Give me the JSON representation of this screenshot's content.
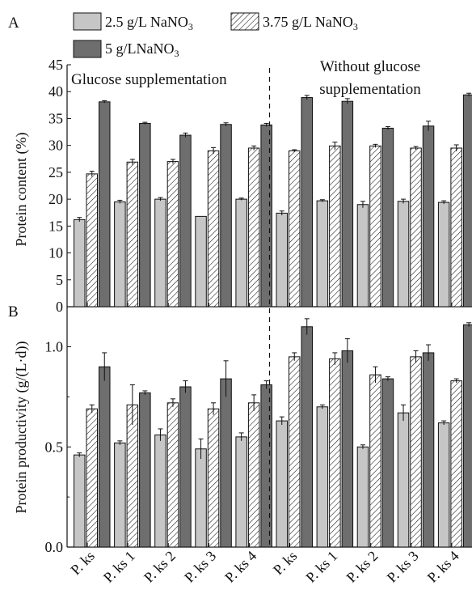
{
  "chart_data": [
    {
      "panel_label": "A",
      "type": "bar",
      "ylabel": "Protein content (%)",
      "ylim": [
        0,
        45
      ],
      "yticks": [
        0,
        5,
        10,
        15,
        20,
        25,
        30,
        35,
        40,
        45
      ],
      "categories": [
        "P. ks",
        "P. ks 1",
        "P. ks 2",
        "P. ks 3",
        "P. ks 4",
        "P. ks",
        "P. ks 1",
        "P. ks 2",
        "P. ks 3",
        "P. ks 4"
      ],
      "group_labels": [
        "Glucose supplementation",
        "Without glucose supplementation"
      ],
      "group_sizes": [
        5,
        5
      ],
      "legend_position": "top-left",
      "grid": false,
      "series": [
        {
          "name": "2.5 g/L NaNO3",
          "values": [
            16.2,
            19.5,
            20.0,
            16.8,
            20.0,
            17.4,
            19.7,
            19.0,
            19.6,
            19.4
          ],
          "errors": [
            0.4,
            0.3,
            0.3,
            0.0,
            0.2,
            0.4,
            0.2,
            0.6,
            0.4,
            0.3
          ]
        },
        {
          "name": "3.75 g/L NaNO3",
          "values": [
            24.7,
            26.9,
            27.0,
            29.0,
            29.5,
            29.0,
            29.9,
            29.9,
            29.5,
            29.5
          ],
          "errors": [
            0.5,
            0.5,
            0.4,
            0.6,
            0.4,
            0.2,
            0.7,
            0.3,
            0.3,
            0.6
          ]
        },
        {
          "name": "5 g/LNaNO3",
          "values": [
            38.1,
            34.1,
            31.9,
            33.9,
            33.8,
            38.9,
            38.2,
            33.2,
            33.6,
            39.4
          ],
          "errors": [
            0.2,
            0.2,
            0.4,
            0.3,
            0.3,
            0.4,
            0.5,
            0.3,
            0.9,
            0.3
          ]
        }
      ]
    },
    {
      "panel_label": "B",
      "type": "bar",
      "ylabel": "Protein productivity (g/(L·d))",
      "ylim": [
        0,
        1.2
      ],
      "yticks": [
        0.0,
        0.5,
        1.0
      ],
      "ytick_labels": [
        "0.0",
        "0.5",
        "1.0"
      ],
      "categories": [
        "P. ks",
        "P. ks 1",
        "P. ks 2",
        "P. ks 3",
        "P. ks 4",
        "P. ks",
        "P. ks 1",
        "P. ks 2",
        "P. ks 3",
        "P. ks 4"
      ],
      "grid": false,
      "series": [
        {
          "name": "2.5 g/L NaNO3",
          "values": [
            0.46,
            0.52,
            0.56,
            0.49,
            0.55,
            0.63,
            0.7,
            0.5,
            0.67,
            0.62
          ],
          "errors": [
            0.01,
            0.01,
            0.03,
            0.05,
            0.02,
            0.02,
            0.01,
            0.01,
            0.04,
            0.01
          ]
        },
        {
          "name": "3.75 g/L NaNO3",
          "values": [
            0.69,
            0.71,
            0.72,
            0.69,
            0.72,
            0.95,
            0.94,
            0.86,
            0.95,
            0.83
          ],
          "errors": [
            0.02,
            0.1,
            0.02,
            0.03,
            0.04,
            0.02,
            0.03,
            0.04,
            0.03,
            0.01
          ]
        },
        {
          "name": "5 g/LNaNO3",
          "values": [
            0.9,
            0.77,
            0.8,
            0.84,
            0.81,
            1.1,
            0.98,
            0.84,
            0.97,
            1.11
          ],
          "errors": [
            0.07,
            0.01,
            0.03,
            0.09,
            0.02,
            0.04,
            0.06,
            0.01,
            0.04,
            0.01
          ]
        }
      ]
    }
  ],
  "legend": {
    "items": [
      {
        "label": "2.5 g/L NaNO",
        "sub": "3"
      },
      {
        "label": "3.75 g/L NaNO",
        "sub": "3"
      },
      {
        "label": "5 g/LNaNO",
        "sub": "3"
      }
    ]
  },
  "annotations": {
    "left_group": "Glucose supplementation",
    "right_group_line1": "Without glucose",
    "right_group_line2": "supplementation"
  },
  "colors": {
    "series_1_fill": "#c6c6c6",
    "series_2_fill": "#ffffff",
    "series_3_fill": "#6e6e6e",
    "stroke": "#111111"
  }
}
